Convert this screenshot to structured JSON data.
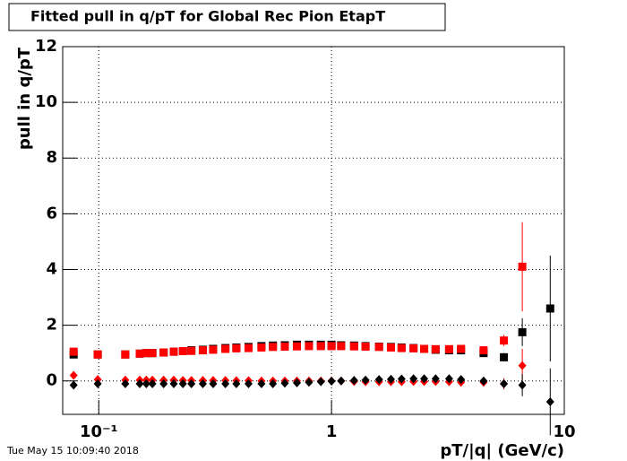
{
  "chart_data": {
    "type": "scatter",
    "title": "Fitted pull in q/pT for Global Rec Pion EtapT",
    "x_label": "pT/|q| (GeV/c)",
    "y_label": "pull in q/pT",
    "timestamp": "Tue May 15 10:09:40 2018",
    "log_x": true,
    "grid": true,
    "xlim": [
      0.07,
      10
    ],
    "ylim": [
      -1.2,
      12
    ],
    "xticks": [
      {
        "value": 0.1,
        "label": "10⁻¹"
      },
      1,
      10
    ],
    "yticks": [
      0,
      2,
      4,
      6,
      8,
      10,
      12
    ],
    "x": [
      0.078,
      0.099,
      0.13,
      0.15,
      0.16,
      0.17,
      0.19,
      0.21,
      0.23,
      0.25,
      0.28,
      0.31,
      0.35,
      0.39,
      0.44,
      0.5,
      0.56,
      0.63,
      0.71,
      0.8,
      0.9,
      1.0,
      1.1,
      1.25,
      1.4,
      1.6,
      1.8,
      2.0,
      2.25,
      2.5,
      2.8,
      3.2,
      3.6,
      4.5,
      5.5,
      6.6,
      8.7
    ],
    "series": [
      {
        "color": "#000000",
        "marker": "square",
        "values": [
          0.95,
          0.95,
          0.95,
          0.98,
          1.0,
          1.0,
          1.02,
          1.05,
          1.07,
          1.1,
          1.12,
          1.15,
          1.18,
          1.2,
          1.22,
          1.25,
          1.27,
          1.28,
          1.3,
          1.3,
          1.3,
          1.3,
          1.28,
          1.27,
          1.25,
          1.23,
          1.22,
          1.2,
          1.18,
          1.15,
          1.12,
          1.1,
          1.1,
          1.0,
          0.85,
          1.75,
          2.6
        ],
        "errors": [
          0.03,
          0.02,
          0.02,
          0.02,
          0.02,
          0.02,
          0.02,
          0.02,
          0.02,
          0.02,
          0.02,
          0.02,
          0.02,
          0.02,
          0.02,
          0.02,
          0.02,
          0.02,
          0.02,
          0.02,
          0.02,
          0.02,
          0.02,
          0.02,
          0.02,
          0.02,
          0.02,
          0.02,
          0.03,
          0.03,
          0.03,
          0.04,
          0.05,
          0.08,
          0.15,
          0.5,
          1.9
        ]
      },
      {
        "color": "#ff0000",
        "marker": "square",
        "values": [
          1.05,
          0.95,
          0.95,
          0.98,
          1.0,
          1.0,
          1.02,
          1.05,
          1.07,
          1.08,
          1.1,
          1.12,
          1.15,
          1.17,
          1.18,
          1.2,
          1.22,
          1.23,
          1.24,
          1.25,
          1.25,
          1.25,
          1.25,
          1.24,
          1.23,
          1.22,
          1.2,
          1.18,
          1.17,
          1.15,
          1.14,
          1.14,
          1.15,
          1.1,
          1.45,
          4.1,
          null
        ],
        "errors": [
          0.03,
          0.02,
          0.02,
          0.02,
          0.02,
          0.02,
          0.02,
          0.02,
          0.02,
          0.02,
          0.02,
          0.02,
          0.02,
          0.02,
          0.02,
          0.02,
          0.02,
          0.02,
          0.02,
          0.02,
          0.02,
          0.02,
          0.02,
          0.02,
          0.02,
          0.02,
          0.02,
          0.02,
          0.03,
          0.03,
          0.03,
          0.04,
          0.05,
          0.08,
          0.2,
          1.6,
          null
        ]
      },
      {
        "color": "#ff0000",
        "marker": "diamond",
        "values": [
          0.2,
          0.05,
          0.03,
          0.03,
          0.03,
          0.03,
          0.03,
          0.03,
          0.02,
          0.02,
          0.02,
          0.02,
          0.02,
          0.01,
          0.01,
          0.0,
          0.0,
          0.0,
          0.0,
          0.0,
          0.0,
          0.0,
          0.0,
          -0.02,
          -0.03,
          -0.03,
          -0.03,
          -0.03,
          -0.02,
          -0.02,
          -0.02,
          -0.03,
          -0.05,
          -0.05,
          -0.1,
          0.55,
          null
        ],
        "errors": [
          0.03,
          0.02,
          0.02,
          0.02,
          0.02,
          0.02,
          0.02,
          0.02,
          0.02,
          0.02,
          0.02,
          0.02,
          0.02,
          0.02,
          0.02,
          0.02,
          0.02,
          0.02,
          0.02,
          0.02,
          0.02,
          0.02,
          0.02,
          0.02,
          0.02,
          0.02,
          0.02,
          0.02,
          0.03,
          0.03,
          0.03,
          0.04,
          0.05,
          0.08,
          0.2,
          0.6,
          null
        ]
      },
      {
        "color": "#000000",
        "marker": "diamond",
        "values": [
          -0.15,
          -0.1,
          -0.1,
          -0.1,
          -0.1,
          -0.1,
          -0.1,
          -0.1,
          -0.1,
          -0.1,
          -0.1,
          -0.1,
          -0.1,
          -0.1,
          -0.1,
          -0.1,
          -0.1,
          -0.08,
          -0.07,
          -0.05,
          -0.03,
          -0.01,
          0.0,
          0.02,
          0.03,
          0.05,
          0.06,
          0.07,
          0.08,
          0.08,
          0.08,
          0.08,
          0.05,
          0.0,
          -0.1,
          -0.15,
          -0.75
        ],
        "errors": [
          0.03,
          0.02,
          0.02,
          0.02,
          0.02,
          0.02,
          0.02,
          0.02,
          0.02,
          0.02,
          0.02,
          0.02,
          0.02,
          0.02,
          0.02,
          0.02,
          0.02,
          0.02,
          0.02,
          0.02,
          0.02,
          0.02,
          0.02,
          0.02,
          0.02,
          0.02,
          0.02,
          0.02,
          0.03,
          0.03,
          0.03,
          0.04,
          0.05,
          0.08,
          0.15,
          0.4,
          1.2
        ]
      }
    ]
  }
}
